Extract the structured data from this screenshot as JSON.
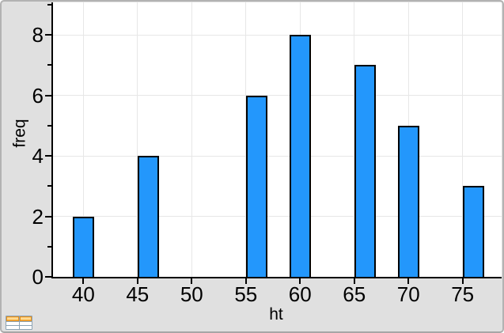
{
  "window": {
    "background": "#e0e0e0",
    "border_color": "#b2b2b2"
  },
  "chart_data": {
    "type": "bar",
    "subtype": "histogram",
    "xlabel": "ht",
    "ylabel": "freq",
    "xlim": [
      37.2,
      78.6
    ],
    "ylim": [
      0,
      9.08
    ],
    "xticks": [
      40,
      45,
      50,
      55,
      60,
      65,
      70,
      75
    ],
    "yticks_major": [
      0,
      2,
      4,
      6,
      8
    ],
    "yticks_minor": [
      1,
      3,
      5,
      7,
      9
    ],
    "grid": true,
    "legend": "none",
    "bin_width": 2,
    "bins": [
      {
        "start": 39,
        "end": 41,
        "freq": 2
      },
      {
        "start": 45,
        "end": 47,
        "freq": 4
      },
      {
        "start": 55,
        "end": 57,
        "freq": 6
      },
      {
        "start": 59,
        "end": 61,
        "freq": 8
      },
      {
        "start": 65,
        "end": 67,
        "freq": 7
      },
      {
        "start": 69,
        "end": 71,
        "freq": 5
      },
      {
        "start": 75,
        "end": 77,
        "freq": 3
      }
    ],
    "bar_color": "#2397fc",
    "bar_border_color": "#000000",
    "gridline_color": "#e7e7e7",
    "axis_color": "#000000"
  },
  "icons": {
    "bottom_left": "lists-and-spreadsheet-icon"
  }
}
